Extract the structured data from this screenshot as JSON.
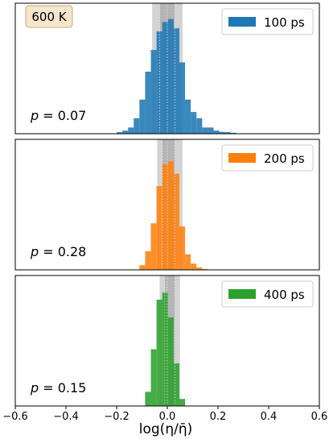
{
  "chart_data": {
    "type": "bar",
    "temperature_label": "600 K",
    "xlabel": "log(η/η̄)",
    "xlim": [
      -0.6,
      0.6
    ],
    "xticks": [
      -0.6,
      -0.4,
      -0.2,
      0.0,
      0.2,
      0.4,
      0.6
    ],
    "xtick_labels": [
      "−0.6",
      "−0.4",
      "−0.2",
      "0.0",
      "0.2",
      "0.4",
      "0.6"
    ],
    "panels": [
      {
        "name": "100 ps",
        "color": "#1f77b4",
        "p_label": "p = 0.07",
        "p_var": "p",
        "p_rest": " = 0.07",
        "band_outer": [
          -0.06,
          0.06
        ],
        "band_inner": [
          -0.03,
          0.03
        ],
        "bin_width": 0.0225,
        "bin_starts": [
          -0.2,
          -0.1775,
          -0.155,
          -0.1325,
          -0.11,
          -0.0875,
          -0.065,
          -0.0425,
          -0.02,
          0.0025,
          0.025,
          0.0475,
          0.07,
          0.0925,
          0.115,
          0.1375,
          0.16,
          0.1825,
          0.205,
          0.2275,
          0.25
        ],
        "counts": [
          0.5,
          1,
          2,
          5,
          11,
          20,
          27,
          33,
          36,
          37,
          34,
          23,
          11,
          7,
          5,
          2,
          2,
          1,
          0.6,
          0.5,
          0.3
        ],
        "ymax": 40
      },
      {
        "name": "200 ps",
        "color": "#ff7f0e",
        "p_label": "p = 0.28",
        "p_var": "p",
        "p_rest": " = 0.28",
        "band_outer": [
          -0.04,
          0.06
        ],
        "band_inner": [
          -0.02,
          0.03
        ],
        "bin_width": 0.0225,
        "bin_starts": [
          -0.11,
          -0.0875,
          -0.065,
          -0.0425,
          -0.02,
          0.0025,
          0.025,
          0.0475,
          0.07,
          0.0925,
          0.115,
          0.1375
        ],
        "counts": [
          3,
          12,
          30,
          54,
          68,
          70,
          62,
          28,
          10,
          4,
          1.5,
          0.5
        ],
        "ymax": 80
      },
      {
        "name": "400 ps",
        "color": "#2ca02c",
        "p_label": "p = 0.15",
        "p_var": "p",
        "p_rest": " = 0.15",
        "band_outer": [
          -0.03,
          0.05
        ],
        "band_inner": [
          -0.01,
          0.03
        ],
        "bin_width": 0.0225,
        "bin_starts": [
          -0.0875,
          -0.065,
          -0.0425,
          -0.02,
          0.0025,
          0.025,
          0.0475
        ],
        "counts": [
          4,
          16,
          30,
          32,
          25,
          12,
          2
        ],
        "ymax": 35
      }
    ]
  }
}
